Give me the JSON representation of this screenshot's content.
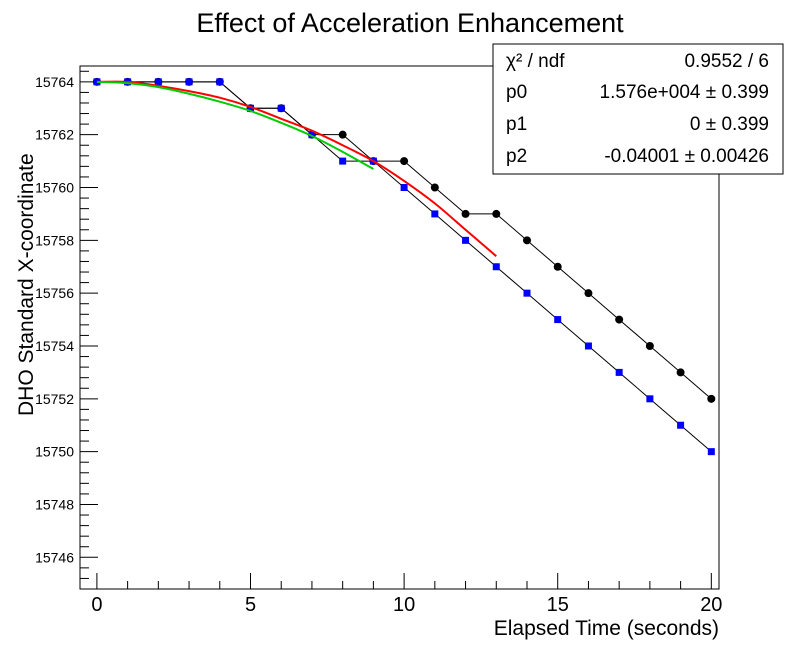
{
  "chart_data": {
    "type": "scatter",
    "title": "Effect of Acceleration Enhancement",
    "xlabel": "Elapsed Time (seconds)",
    "ylabel": "DHO Standard X-coordinate",
    "xlim": [
      -0.55,
      20.25
    ],
    "ylim": [
      15744.8,
      15764.6
    ],
    "x_ticks": [
      0,
      5,
      10,
      15,
      20
    ],
    "y_ticks": [
      15746,
      15748,
      15750,
      15752,
      15754,
      15756,
      15758,
      15760,
      15762,
      15764
    ],
    "grid": false,
    "series": [
      {
        "marker": "circle",
        "color": "#000000",
        "connected": true,
        "x": [
          0,
          1,
          2,
          3,
          4,
          5,
          6,
          7,
          8,
          9,
          10,
          11,
          12,
          13,
          14,
          15,
          16,
          17,
          18,
          19,
          20
        ],
        "y": [
          15764,
          15764,
          15764,
          15764,
          15764,
          15763,
          15763,
          15762,
          15762,
          15761,
          15761,
          15760,
          15759,
          15759,
          15758,
          15757,
          15756,
          15755,
          15754,
          15753,
          15752
        ]
      },
      {
        "marker": "square",
        "color": "#0000ff",
        "connected": true,
        "x": [
          0,
          1,
          2,
          3,
          4,
          5,
          6,
          7,
          8,
          9,
          10,
          11,
          12,
          13,
          14,
          15,
          16,
          17,
          18,
          19,
          20
        ],
        "y": [
          15764,
          15764,
          15764,
          15764,
          15764,
          15763,
          15763,
          15762,
          15761,
          15761,
          15760,
          15759,
          15758,
          15757,
          15756,
          15755,
          15754,
          15753,
          15752,
          15751,
          15750
        ]
      }
    ],
    "fits": [
      {
        "color": "#ff0000",
        "x": [
          0,
          1,
          2,
          3,
          4,
          5,
          6,
          7,
          8,
          9,
          10,
          11,
          12,
          13
        ],
        "y": [
          15764,
          15764,
          15763.85,
          15763.65,
          15763.4,
          15763.05,
          15762.6,
          15762.15,
          15761.6,
          15761.0,
          15760.25,
          15759.4,
          15758.4,
          15757.4
        ]
      },
      {
        "color": "#00cc00",
        "x": [
          0,
          1,
          2,
          3,
          4,
          5,
          6,
          7,
          8,
          9
        ],
        "y": [
          15764,
          15763.95,
          15763.8,
          15763.55,
          15763.25,
          15762.9,
          15762.45,
          15761.95,
          15761.35,
          15760.7
        ]
      }
    ],
    "stats_box": {
      "rows": [
        {
          "name": "χ² / ndf",
          "value": "0.9552 / 6"
        },
        {
          "name": "p0",
          "value": "1.576e+004 ± 0.399"
        },
        {
          "name": "p1",
          "value": "0 ± 0.399"
        },
        {
          "name": "p2",
          "value": "-0.04001 ± 0.00426"
        }
      ]
    }
  }
}
